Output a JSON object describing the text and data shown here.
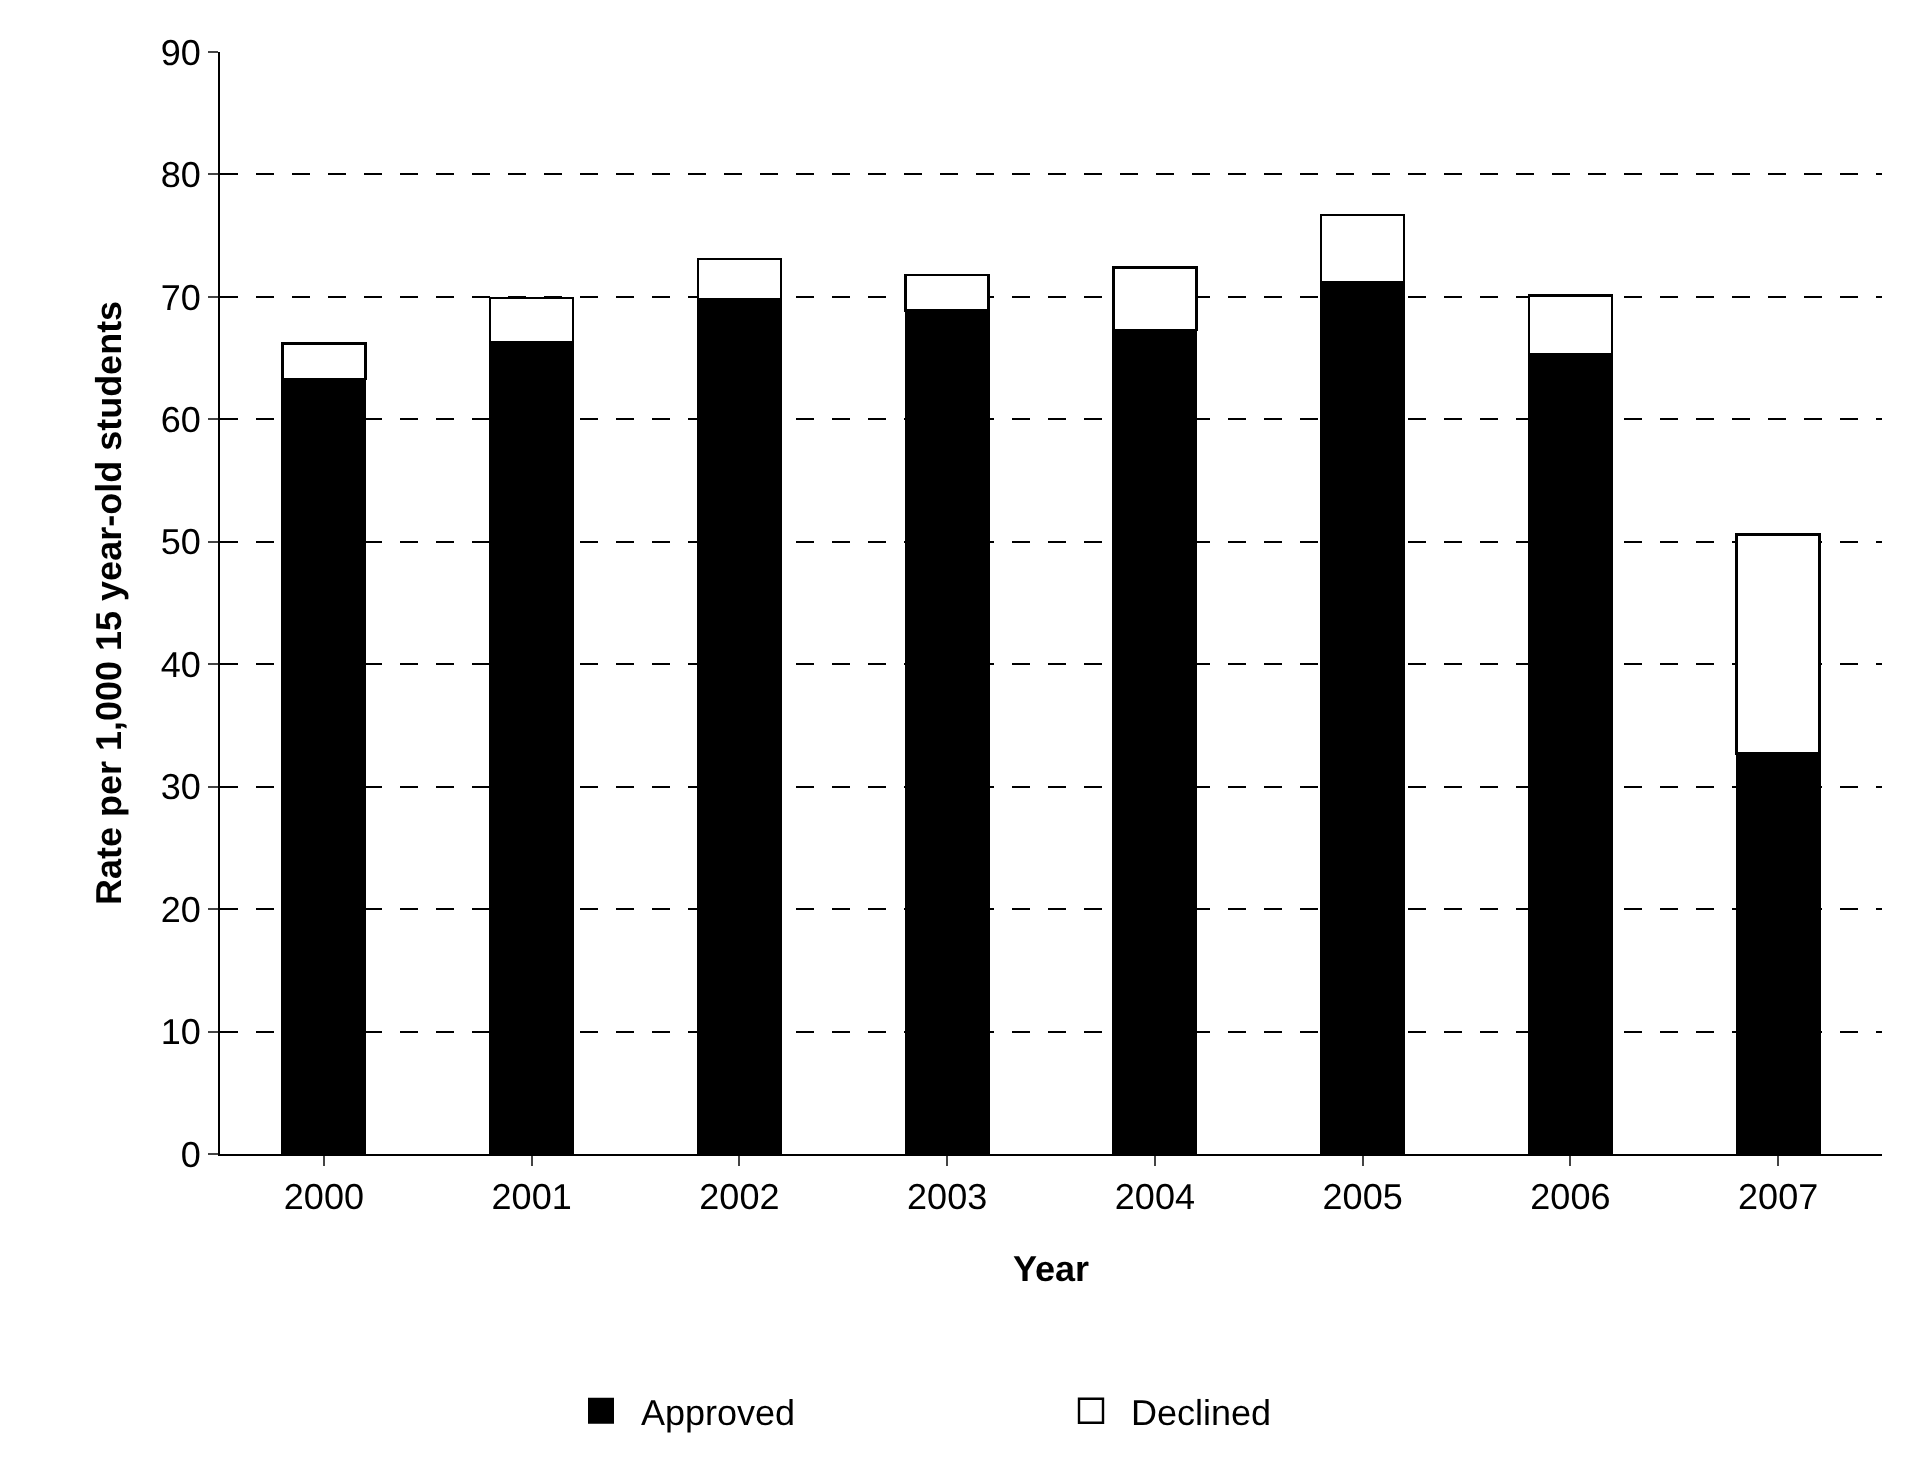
{
  "chart_data": {
    "type": "bar",
    "stacked": true,
    "xlabel": "Year",
    "ylabel": "Rate per 1,000 15 year-old students",
    "categories": [
      "2000",
      "2001",
      "2002",
      "2003",
      "2004",
      "2005",
      "2006",
      "2007"
    ],
    "series": [
      {
        "name": "Approved",
        "color": "#000000",
        "values": [
          63.3,
          66.3,
          69.8,
          68.9,
          67.3,
          71.2,
          65.3,
          32.7
        ]
      },
      {
        "name": "Declined",
        "color": "#ffffff",
        "values": [
          2.9,
          3.6,
          3.3,
          2.9,
          5.1,
          5.5,
          4.8,
          17.9
        ]
      }
    ],
    "ylim": [
      0,
      90
    ],
    "yticks": [
      0,
      10,
      20,
      30,
      40,
      50,
      60,
      70,
      80,
      90
    ],
    "grid": "y",
    "legend": "bottom"
  }
}
